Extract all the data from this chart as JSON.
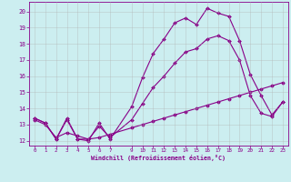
{
  "xlabel": "Windchill (Refroidissement éolien,°C)",
  "background_color": "#cceef0",
  "grid_color": "#b0b0b0",
  "line_color": "#880088",
  "xlim": [
    -0.5,
    23.5
  ],
  "ylim": [
    11.7,
    20.6
  ],
  "xticks": [
    0,
    1,
    2,
    3,
    4,
    5,
    6,
    7,
    9,
    10,
    11,
    12,
    13,
    14,
    15,
    16,
    17,
    18,
    19,
    20,
    21,
    22,
    23
  ],
  "yticks": [
    12,
    13,
    14,
    15,
    16,
    17,
    18,
    19,
    20
  ],
  "line1_x": [
    0,
    1,
    2,
    3,
    4,
    5,
    6,
    7,
    9,
    10,
    11,
    12,
    13,
    14,
    15,
    16,
    17,
    18,
    19,
    20,
    21,
    22,
    23
  ],
  "line1_y": [
    13.4,
    13.1,
    12.1,
    13.4,
    12.1,
    12.0,
    13.1,
    12.1,
    14.1,
    15.9,
    17.4,
    18.3,
    19.3,
    19.6,
    19.2,
    20.2,
    19.9,
    19.7,
    18.2,
    16.1,
    14.8,
    13.6,
    14.4
  ],
  "line2_x": [
    0,
    1,
    2,
    3,
    4,
    5,
    6,
    7,
    9,
    10,
    11,
    12,
    13,
    14,
    15,
    16,
    17,
    18,
    19,
    20,
    21,
    22,
    23
  ],
  "line2_y": [
    13.3,
    13.0,
    12.2,
    12.5,
    12.3,
    12.1,
    12.2,
    12.4,
    12.8,
    13.0,
    13.2,
    13.4,
    13.6,
    13.8,
    14.0,
    14.2,
    14.4,
    14.6,
    14.8,
    15.0,
    15.2,
    15.4,
    15.6
  ],
  "line3_x": [
    0,
    1,
    2,
    3,
    4,
    5,
    6,
    7,
    9,
    10,
    11,
    12,
    13,
    14,
    15,
    16,
    17,
    18,
    19,
    20,
    21,
    22,
    23
  ],
  "line3_y": [
    13.4,
    13.1,
    12.1,
    13.3,
    12.1,
    12.1,
    12.9,
    12.2,
    13.3,
    14.3,
    15.3,
    16.0,
    16.8,
    17.5,
    17.7,
    18.3,
    18.5,
    18.2,
    17.0,
    14.8,
    13.7,
    13.5,
    14.4
  ]
}
